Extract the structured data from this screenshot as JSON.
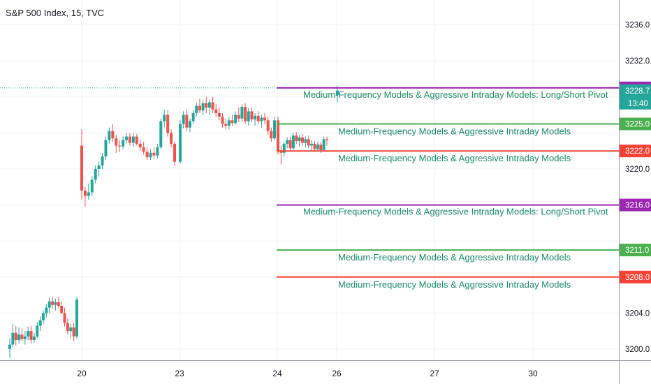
{
  "title": "S&P 500 Index, 15, TVC",
  "colors": {
    "up": "#26a69a",
    "down": "#ef5350",
    "purple": "#9c27b0",
    "green": "#4caf50",
    "red": "#f44336",
    "label": "#1b8a6b",
    "current": "#26a69a",
    "grid": "#eef0f3"
  },
  "chart_data": {
    "type": "candlestick",
    "y_axis": {
      "ticks": [
        3200.0,
        3204.0,
        3208.0,
        3212.0,
        3216.0,
        3220.0,
        3224.0,
        3228.0,
        3232.0,
        3236.0
      ],
      "visible_labels": [
        "3200.0",
        "3204.0",
        "3220.0",
        "3232.0",
        "3236.0"
      ],
      "range": [
        3199.0,
        3240.6
      ],
      "position": "right"
    },
    "x_axis": {
      "ticks": [
        "20",
        "23",
        "24",
        "26",
        "27",
        "30"
      ]
    },
    "price_now": {
      "value": "3228.7",
      "countdown": "13:40"
    },
    "dotted_reference": 3229.0,
    "levels": [
      {
        "price": 3229.0,
        "tag": "3229.0",
        "color_key": "purple",
        "label": "Medium-Frequency Models & Aggressive Intraday Models: Long/Short Pivot"
      },
      {
        "price": 3225.0,
        "tag": "3225.0",
        "color_key": "green",
        "label": "Medium-Frequency Models & Aggressive Intraday Models"
      },
      {
        "price": 3222.0,
        "tag": "3222.0",
        "color_key": "red",
        "label": "Medium-Frequency Models & Aggressive Intraday Models"
      },
      {
        "price": 3216.0,
        "tag": "3216.0",
        "color_key": "purple",
        "label": "Medium-Frequency Models & Aggressive Intraday Models: Long/Short Pivot"
      },
      {
        "price": 3211.0,
        "tag": "3211.0",
        "color_key": "green",
        "label": "Medium-Frequency Models & Aggressive Intraday Models"
      },
      {
        "price": 3208.0,
        "tag": "3208.0",
        "color_key": "red",
        "label": "Medium-Frequency Models & Aggressive Intraday Models"
      }
    ],
    "candles_day1": [
      {
        "o": 3200.0,
        "h": 3201.2,
        "l": 3199.0,
        "c": 3200.5
      },
      {
        "o": 3200.5,
        "h": 3202.8,
        "l": 3200.2,
        "c": 3201.8
      },
      {
        "o": 3201.8,
        "h": 3202.6,
        "l": 3200.4,
        "c": 3201.0
      },
      {
        "o": 3201.0,
        "h": 3202.4,
        "l": 3200.6,
        "c": 3201.6
      },
      {
        "o": 3201.6,
        "h": 3202.3,
        "l": 3200.9,
        "c": 3201.1
      },
      {
        "o": 3201.1,
        "h": 3202.0,
        "l": 3200.5,
        "c": 3201.4
      },
      {
        "o": 3201.4,
        "h": 3202.5,
        "l": 3201.0,
        "c": 3202.0
      },
      {
        "o": 3202.0,
        "h": 3202.6,
        "l": 3200.6,
        "c": 3201.0
      },
      {
        "o": 3201.0,
        "h": 3201.8,
        "l": 3200.7,
        "c": 3201.4
      },
      {
        "o": 3201.4,
        "h": 3203.0,
        "l": 3201.2,
        "c": 3202.6
      },
      {
        "o": 3202.6,
        "h": 3203.6,
        "l": 3202.0,
        "c": 3203.2
      },
      {
        "o": 3203.2,
        "h": 3204.3,
        "l": 3202.8,
        "c": 3204.0
      },
      {
        "o": 3204.0,
        "h": 3205.0,
        "l": 3203.5,
        "c": 3204.6
      },
      {
        "o": 3204.6,
        "h": 3205.7,
        "l": 3204.0,
        "c": 3205.3
      },
      {
        "o": 3205.3,
        "h": 3205.8,
        "l": 3204.5,
        "c": 3204.9
      },
      {
        "o": 3204.9,
        "h": 3205.6,
        "l": 3204.3,
        "c": 3205.2
      },
      {
        "o": 3205.2,
        "h": 3205.8,
        "l": 3204.6,
        "c": 3204.8
      },
      {
        "o": 3204.8,
        "h": 3205.3,
        "l": 3203.9,
        "c": 3204.0
      },
      {
        "o": 3204.0,
        "h": 3204.6,
        "l": 3202.5,
        "c": 3202.9
      },
      {
        "o": 3202.9,
        "h": 3203.4,
        "l": 3201.6,
        "c": 3202.0
      },
      {
        "o": 3202.0,
        "h": 3202.8,
        "l": 3201.2,
        "c": 3202.4
      },
      {
        "o": 3202.4,
        "h": 3202.9,
        "l": 3200.9,
        "c": 3201.4
      },
      {
        "o": 3201.4,
        "h": 3205.8,
        "l": 3201.2,
        "c": 3205.5
      }
    ],
    "candles_day2": [
      {
        "o": 3222.6,
        "h": 3224.4,
        "l": 3216.6,
        "c": 3217.6
      },
      {
        "o": 3217.6,
        "h": 3218.0,
        "l": 3215.8,
        "c": 3217.0
      },
      {
        "o": 3217.0,
        "h": 3218.4,
        "l": 3216.6,
        "c": 3217.4
      },
      {
        "o": 3217.4,
        "h": 3219.2,
        "l": 3217.0,
        "c": 3218.8
      },
      {
        "o": 3218.8,
        "h": 3220.4,
        "l": 3218.4,
        "c": 3220.0
      },
      {
        "o": 3220.0,
        "h": 3220.8,
        "l": 3219.2,
        "c": 3220.4
      },
      {
        "o": 3220.4,
        "h": 3221.8,
        "l": 3220.0,
        "c": 3221.4
      },
      {
        "o": 3221.4,
        "h": 3223.6,
        "l": 3221.0,
        "c": 3223.2
      },
      {
        "o": 3223.2,
        "h": 3224.6,
        "l": 3222.8,
        "c": 3224.2
      },
      {
        "o": 3224.2,
        "h": 3225.0,
        "l": 3223.0,
        "c": 3223.4
      },
      {
        "o": 3223.4,
        "h": 3223.8,
        "l": 3221.8,
        "c": 3222.6
      },
      {
        "o": 3222.6,
        "h": 3223.2,
        "l": 3221.9,
        "c": 3222.5
      },
      {
        "o": 3222.5,
        "h": 3223.6,
        "l": 3222.2,
        "c": 3223.2
      },
      {
        "o": 3223.2,
        "h": 3224.0,
        "l": 3222.8,
        "c": 3223.6
      },
      {
        "o": 3223.6,
        "h": 3224.0,
        "l": 3222.6,
        "c": 3222.9
      },
      {
        "o": 3222.9,
        "h": 3224.0,
        "l": 3222.5,
        "c": 3223.6
      },
      {
        "o": 3223.6,
        "h": 3223.9,
        "l": 3222.6,
        "c": 3222.8
      },
      {
        "o": 3222.8,
        "h": 3223.2,
        "l": 3222.0,
        "c": 3222.4
      },
      {
        "o": 3222.4,
        "h": 3223.0,
        "l": 3221.6,
        "c": 3221.9
      },
      {
        "o": 3221.9,
        "h": 3222.4,
        "l": 3221.0,
        "c": 3221.3
      },
      {
        "o": 3221.3,
        "h": 3222.2,
        "l": 3221.0,
        "c": 3221.8
      },
      {
        "o": 3221.8,
        "h": 3222.4,
        "l": 3221.1,
        "c": 3221.5
      },
      {
        "o": 3221.5,
        "h": 3222.8,
        "l": 3221.2,
        "c": 3222.4
      },
      {
        "o": 3222.4,
        "h": 3225.6,
        "l": 3222.2,
        "c": 3225.3
      },
      {
        "o": 3225.3,
        "h": 3226.6,
        "l": 3224.6,
        "c": 3226.0
      },
      {
        "o": 3226.0,
        "h": 3226.5,
        "l": 3223.6,
        "c": 3224.0
      },
      {
        "o": 3224.0,
        "h": 3224.4,
        "l": 3222.4,
        "c": 3222.8
      },
      {
        "o": 3222.8,
        "h": 3223.0,
        "l": 3220.4,
        "c": 3220.8
      }
    ],
    "candles_day3": [
      {
        "o": 3220.8,
        "h": 3225.4,
        "l": 3220.6,
        "c": 3225.0
      },
      {
        "o": 3225.0,
        "h": 3226.4,
        "l": 3224.5,
        "c": 3226.0
      },
      {
        "o": 3226.0,
        "h": 3226.6,
        "l": 3224.2,
        "c": 3224.6
      },
      {
        "o": 3224.6,
        "h": 3225.6,
        "l": 3224.1,
        "c": 3225.3
      },
      {
        "o": 3225.3,
        "h": 3226.5,
        "l": 3225.0,
        "c": 3226.2
      },
      {
        "o": 3226.2,
        "h": 3227.4,
        "l": 3225.8,
        "c": 3227.0
      },
      {
        "o": 3227.0,
        "h": 3227.8,
        "l": 3226.2,
        "c": 3226.5
      },
      {
        "o": 3226.5,
        "h": 3227.6,
        "l": 3226.0,
        "c": 3227.3
      },
      {
        "o": 3227.3,
        "h": 3228.0,
        "l": 3226.2,
        "c": 3226.8
      },
      {
        "o": 3226.8,
        "h": 3227.7,
        "l": 3226.0,
        "c": 3227.4
      },
      {
        "o": 3227.4,
        "h": 3228.0,
        "l": 3226.2,
        "c": 3226.6
      },
      {
        "o": 3226.6,
        "h": 3227.2,
        "l": 3225.8,
        "c": 3226.2
      },
      {
        "o": 3226.2,
        "h": 3226.8,
        "l": 3225.4,
        "c": 3225.8
      },
      {
        "o": 3225.8,
        "h": 3226.2,
        "l": 3224.6,
        "c": 3225.0
      },
      {
        "o": 3225.0,
        "h": 3225.6,
        "l": 3224.4,
        "c": 3224.8
      },
      {
        "o": 3224.8,
        "h": 3225.8,
        "l": 3224.4,
        "c": 3225.4
      },
      {
        "o": 3225.4,
        "h": 3226.0,
        "l": 3224.8,
        "c": 3225.1
      },
      {
        "o": 3225.1,
        "h": 3226.4,
        "l": 3224.9,
        "c": 3226.0
      },
      {
        "o": 3226.0,
        "h": 3226.8,
        "l": 3225.2,
        "c": 3225.6
      },
      {
        "o": 3225.6,
        "h": 3227.2,
        "l": 3225.2,
        "c": 3226.9
      },
      {
        "o": 3226.9,
        "h": 3227.3,
        "l": 3225.0,
        "c": 3225.3
      },
      {
        "o": 3225.3,
        "h": 3226.8,
        "l": 3224.8,
        "c": 3226.4
      },
      {
        "o": 3226.4,
        "h": 3226.8,
        "l": 3225.2,
        "c": 3225.5
      },
      {
        "o": 3225.5,
        "h": 3226.2,
        "l": 3224.8,
        "c": 3225.9
      },
      {
        "o": 3225.9,
        "h": 3226.4,
        "l": 3225.0,
        "c": 3225.3
      },
      {
        "o": 3225.3,
        "h": 3226.0,
        "l": 3224.6,
        "c": 3225.7
      },
      {
        "o": 3225.7,
        "h": 3226.2,
        "l": 3225.0,
        "c": 3225.4
      },
      {
        "o": 3225.4,
        "h": 3225.8,
        "l": 3223.8,
        "c": 3224.2
      },
      {
        "o": 3224.2,
        "h": 3224.6,
        "l": 3223.0,
        "c": 3223.4
      },
      {
        "o": 3223.4,
        "h": 3225.8,
        "l": 3223.2,
        "c": 3225.4
      }
    ],
    "candles_day4": [
      {
        "o": 3225.4,
        "h": 3225.8,
        "l": 3221.6,
        "c": 3222.0
      },
      {
        "o": 3222.0,
        "h": 3222.6,
        "l": 3220.5,
        "c": 3221.8
      },
      {
        "o": 3221.8,
        "h": 3223.0,
        "l": 3221.4,
        "c": 3222.8
      },
      {
        "o": 3222.8,
        "h": 3223.5,
        "l": 3222.3,
        "c": 3223.2
      },
      {
        "o": 3223.2,
        "h": 3223.6,
        "l": 3222.0,
        "c": 3222.3
      },
      {
        "o": 3222.3,
        "h": 3224.0,
        "l": 3222.1,
        "c": 3223.7
      },
      {
        "o": 3223.7,
        "h": 3224.1,
        "l": 3222.8,
        "c": 3223.1
      },
      {
        "o": 3223.1,
        "h": 3223.8,
        "l": 3222.5,
        "c": 3223.5
      },
      {
        "o": 3223.5,
        "h": 3223.9,
        "l": 3222.6,
        "c": 3222.9
      },
      {
        "o": 3222.9,
        "h": 3223.6,
        "l": 3222.4,
        "c": 3223.3
      },
      {
        "o": 3223.3,
        "h": 3223.7,
        "l": 3222.3,
        "c": 3222.6
      },
      {
        "o": 3222.6,
        "h": 3223.2,
        "l": 3222.0,
        "c": 3222.8
      },
      {
        "o": 3222.8,
        "h": 3223.1,
        "l": 3221.9,
        "c": 3222.2
      },
      {
        "o": 3222.2,
        "h": 3223.0,
        "l": 3222.0,
        "c": 3222.7
      },
      {
        "o": 3222.7,
        "h": 3223.0,
        "l": 3221.8,
        "c": 3222.1
      },
      {
        "o": 3222.1,
        "h": 3223.6,
        "l": 3221.9,
        "c": 3223.3
      },
      {
        "o": 3223.3,
        "h": 3223.6,
        "l": 3222.6,
        "c": 3223.2
      }
    ],
    "candle_day5": {
      "o": 3228.2,
      "h": 3229.2,
      "l": 3227.4,
      "c": 3228.7
    }
  }
}
